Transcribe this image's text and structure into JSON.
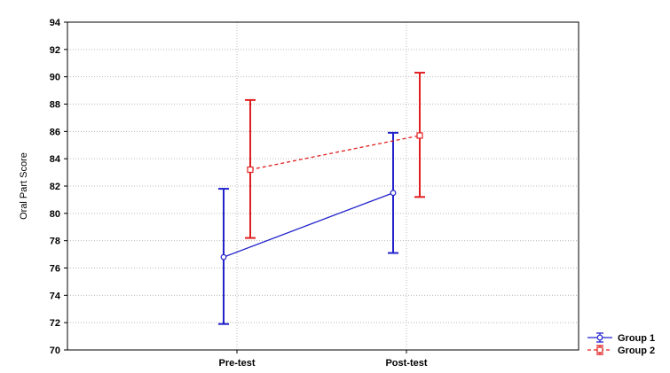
{
  "chart_data": {
    "type": "line",
    "title": "",
    "xlabel": "",
    "ylabel": "Oral Part Score",
    "categories": [
      "Pre-test",
      "Post-test"
    ],
    "ylim": [
      70,
      94
    ],
    "yticks": [
      70,
      72,
      74,
      76,
      78,
      80,
      82,
      84,
      86,
      88,
      90,
      92,
      94
    ],
    "grid": true,
    "legend_position": "bottom-right",
    "series": [
      {
        "name": "Group 1",
        "color": "#2222cc",
        "marker": "circle",
        "line_style": "solid",
        "values": [
          76.8,
          81.5
        ],
        "lower": [
          71.9,
          77.1
        ],
        "upper": [
          81.8,
          85.9
        ]
      },
      {
        "name": "Group 2",
        "color": "#e02020",
        "marker": "square",
        "line_style": "dashed",
        "values": [
          83.2,
          85.7
        ],
        "lower": [
          78.2,
          81.2
        ],
        "upper": [
          88.3,
          90.3
        ]
      }
    ]
  }
}
